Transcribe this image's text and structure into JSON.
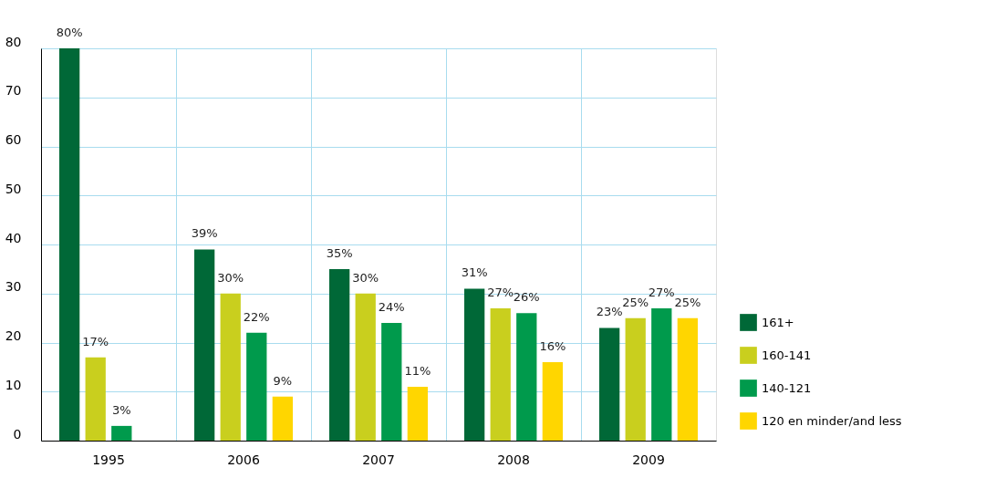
{
  "chart_data": {
    "type": "bar",
    "categories": [
      "1995",
      "2006",
      "2007",
      "2008",
      "2009"
    ],
    "series": [
      {
        "name": "161+",
        "color": "#006837",
        "values": [
          80,
          39,
          35,
          31,
          23
        ],
        "value_labels": [
          "80%",
          "39%",
          "35%",
          "31%",
          "23%"
        ]
      },
      {
        "name": "160-141",
        "color": "#c9cf1e",
        "values": [
          17,
          30,
          30,
          27,
          25
        ],
        "value_labels": [
          "17%",
          "30%",
          "30%",
          "27%",
          "25%"
        ]
      },
      {
        "name": "140-121",
        "color": "#009a4c",
        "values": [
          3,
          22,
          24,
          26,
          27
        ],
        "value_labels": [
          "3%",
          "22%",
          "24%",
          "26%",
          "27%"
        ]
      },
      {
        "name": "120 en minder/and less",
        "color": "#ffd600",
        "values": [
          null,
          9,
          11,
          16,
          25
        ],
        "value_labels": [
          null,
          "9%",
          "11%",
          "16%",
          "25%"
        ]
      }
    ],
    "ylim": [
      0,
      80
    ],
    "yticks": [
      0,
      10,
      20,
      30,
      40,
      50,
      60,
      70,
      80
    ],
    "grid": true,
    "legend": "right"
  }
}
